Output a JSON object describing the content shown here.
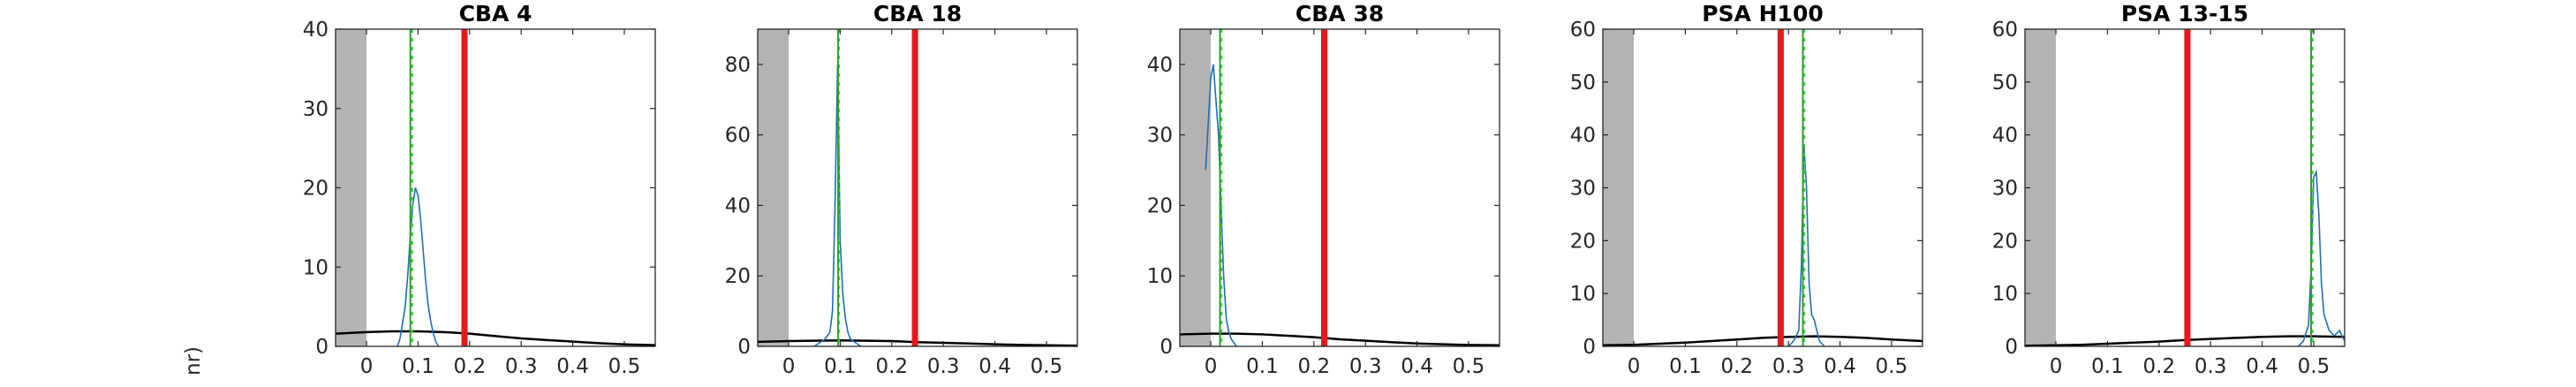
{
  "figure": {
    "ylabel_fragment": "nr)",
    "colors": {
      "histogram": "#1f6fb4",
      "peak_line": "#2ca02c",
      "dotted_line": "#3fd13f",
      "threshold": "#e41a1c",
      "prior_curve": "#000000",
      "shaded": "#b3b3b3"
    }
  },
  "chart_data": [
    {
      "type": "line",
      "title": "CBA 4",
      "xlim": [
        -0.06,
        0.56
      ],
      "ylim": [
        0,
        40
      ],
      "xticks": [
        0,
        0.1,
        0.2,
        0.3,
        0.4,
        0.5
      ],
      "xtick_labels": [
        "0",
        "0.1",
        "0.2",
        "0.3",
        "0.4",
        "0.5"
      ],
      "yticks": [
        0,
        10,
        20,
        30,
        40
      ],
      "ytick_labels": [
        "0",
        "10",
        "20",
        "30",
        "40"
      ],
      "shaded_x": [
        -0.06,
        0.0
      ],
      "threshold_x": 0.19,
      "peak_x": 0.085,
      "dotted_x": 0.088,
      "prior_curve": {
        "x": [
          -0.06,
          0.0,
          0.05,
          0.1,
          0.15,
          0.2,
          0.25,
          0.3,
          0.35,
          0.4,
          0.45,
          0.5,
          0.56
        ],
        "y": [
          1.6,
          1.8,
          1.9,
          1.9,
          1.8,
          1.6,
          1.3,
          1.0,
          0.8,
          0.6,
          0.4,
          0.25,
          0.15
        ]
      },
      "histogram": {
        "x": [
          0.06,
          0.065,
          0.07,
          0.075,
          0.08,
          0.085,
          0.09,
          0.095,
          0.1,
          0.105,
          0.11,
          0.115,
          0.12,
          0.125,
          0.13,
          0.135,
          0.14
        ],
        "y": [
          0,
          1,
          3,
          5,
          9,
          14,
          18,
          20,
          19,
          16,
          12,
          8,
          5,
          3,
          1.5,
          0.5,
          0
        ]
      }
    },
    {
      "type": "line",
      "title": "CBA 18",
      "xlim": [
        -0.06,
        0.56
      ],
      "ylim": [
        0,
        90
      ],
      "xticks": [
        0,
        0.1,
        0.2,
        0.3,
        0.4,
        0.5
      ],
      "xtick_labels": [
        "0",
        "0.1",
        "0.2",
        "0.3",
        "0.4",
        "0.5"
      ],
      "yticks": [
        0,
        20,
        40,
        60,
        80
      ],
      "ytick_labels": [
        "0",
        "20",
        "40",
        "60",
        "80"
      ],
      "shaded_x": [
        -0.06,
        0.0
      ],
      "threshold_x": 0.245,
      "peak_x": 0.096,
      "dotted_x": 0.097,
      "prior_curve": {
        "x": [
          -0.06,
          0.0,
          0.05,
          0.1,
          0.15,
          0.2,
          0.25,
          0.3,
          0.35,
          0.4,
          0.45,
          0.5,
          0.56
        ],
        "y": [
          1.3,
          1.5,
          1.6,
          1.7,
          1.6,
          1.5,
          1.2,
          1.0,
          0.8,
          0.6,
          0.4,
          0.3,
          0.2
        ]
      },
      "histogram": {
        "x": [
          0.05,
          0.06,
          0.07,
          0.08,
          0.085,
          0.09,
          0.095,
          0.1,
          0.105,
          0.11,
          0.115,
          0.12,
          0.13,
          0.14
        ],
        "y": [
          0,
          1,
          2,
          4,
          10,
          40,
          80,
          30,
          15,
          8,
          4,
          2,
          1,
          0
        ]
      }
    },
    {
      "type": "line",
      "title": "CBA 38",
      "xlim": [
        -0.06,
        0.56
      ],
      "ylim": [
        0,
        45
      ],
      "xticks": [
        0,
        0.1,
        0.2,
        0.3,
        0.4,
        0.5
      ],
      "xtick_labels": [
        "0",
        "0.1",
        "0.2",
        "0.3",
        "0.4",
        "0.5"
      ],
      "yticks": [
        0,
        10,
        20,
        30,
        40
      ],
      "ytick_labels": [
        "0",
        "10",
        "20",
        "30",
        "40"
      ],
      "shaded_x": [
        -0.06,
        0.0
      ],
      "threshold_x": 0.22,
      "peak_x": 0.018,
      "dotted_x": 0.02,
      "prior_curve": {
        "x": [
          -0.06,
          0.0,
          0.05,
          0.1,
          0.15,
          0.2,
          0.25,
          0.3,
          0.35,
          0.4,
          0.45,
          0.5,
          0.56
        ],
        "y": [
          1.7,
          1.8,
          1.8,
          1.7,
          1.5,
          1.3,
          1.0,
          0.8,
          0.6,
          0.4,
          0.3,
          0.2,
          0.15
        ]
      },
      "histogram": {
        "x": [
          -0.01,
          0.0,
          0.005,
          0.01,
          0.015,
          0.02,
          0.025,
          0.03,
          0.035,
          0.04,
          0.045,
          0.05
        ],
        "y": [
          25,
          38,
          40,
          35,
          30,
          20,
          10,
          4,
          2,
          1,
          0.5,
          0
        ]
      }
    },
    {
      "type": "line",
      "title": "PSA H100",
      "xlim": [
        -0.06,
        0.56
      ],
      "ylim": [
        0,
        60
      ],
      "xticks": [
        0,
        0.1,
        0.2,
        0.3,
        0.4,
        0.5
      ],
      "xtick_labels": [
        "0",
        "0.1",
        "0.2",
        "0.3",
        "0.4",
        "0.5"
      ],
      "yticks": [
        0,
        10,
        20,
        30,
        40,
        50,
        60
      ],
      "ytick_labels": [
        "0",
        "10",
        "20",
        "30",
        "40",
        "50",
        "60"
      ],
      "shaded_x": [
        -0.06,
        0.0
      ],
      "threshold_x": 0.285,
      "peak_x": 0.328,
      "dotted_x": 0.33,
      "prior_curve": {
        "x": [
          -0.06,
          0.0,
          0.05,
          0.1,
          0.15,
          0.2,
          0.25,
          0.3,
          0.35,
          0.4,
          0.45,
          0.5,
          0.56
        ],
        "y": [
          0.2,
          0.3,
          0.5,
          0.7,
          1.0,
          1.3,
          1.6,
          1.8,
          1.9,
          1.8,
          1.6,
          1.3,
          1.0
        ]
      },
      "histogram": {
        "x": [
          0.3,
          0.31,
          0.32,
          0.325,
          0.33,
          0.335,
          0.34,
          0.345,
          0.35,
          0.355,
          0.36,
          0.37
        ],
        "y": [
          0,
          1,
          3,
          15,
          38,
          30,
          12,
          6,
          5,
          3,
          1,
          0
        ]
      }
    },
    {
      "type": "line",
      "title": "PSA 13-15",
      "xlim": [
        -0.06,
        0.56
      ],
      "ylim": [
        0,
        60
      ],
      "xticks": [
        0,
        0.1,
        0.2,
        0.3,
        0.4,
        0.5
      ],
      "xtick_labels": [
        "0",
        "0.1",
        "0.2",
        "0.3",
        "0.4",
        "0.5"
      ],
      "yticks": [
        0,
        10,
        20,
        30,
        40,
        50,
        60
      ],
      "ytick_labels": [
        "0",
        "10",
        "20",
        "30",
        "40",
        "50",
        "60"
      ],
      "shaded_x": [
        -0.06,
        0.0
      ],
      "threshold_x": 0.255,
      "peak_x": 0.495,
      "dotted_x": 0.497,
      "prior_curve": {
        "x": [
          -0.06,
          0.0,
          0.05,
          0.1,
          0.15,
          0.2,
          0.25,
          0.3,
          0.35,
          0.4,
          0.45,
          0.5,
          0.56
        ],
        "y": [
          0.1,
          0.2,
          0.3,
          0.5,
          0.7,
          0.9,
          1.2,
          1.4,
          1.6,
          1.8,
          1.9,
          1.9,
          1.8
        ]
      },
      "histogram": {
        "x": [
          0.47,
          0.48,
          0.49,
          0.495,
          0.5,
          0.505,
          0.51,
          0.515,
          0.52,
          0.53,
          0.54,
          0.55,
          0.56
        ],
        "y": [
          0,
          1,
          4,
          15,
          32,
          33,
          25,
          12,
          6,
          3,
          2,
          3,
          1
        ]
      }
    }
  ]
}
